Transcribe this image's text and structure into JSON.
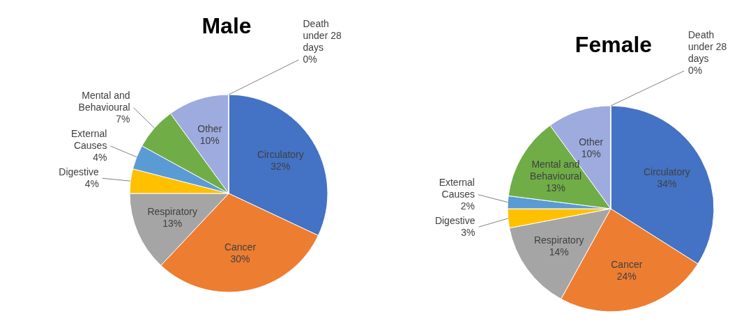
{
  "chart_data": [
    {
      "type": "pie",
      "title": "Male",
      "categories": [
        "Circulatory",
        "Cancer",
        "Respiratory",
        "Digestive",
        "External Causes",
        "Mental and Behavioural",
        "Other",
        "Death under 28 days"
      ],
      "values": [
        32,
        30,
        13,
        4,
        4,
        7,
        10,
        0
      ],
      "value_labels": [
        "32%",
        "30%",
        "13%",
        "4%",
        "4%",
        "7%",
        "10%",
        "0%"
      ],
      "colors": [
        "#4472c4",
        "#ed7d31",
        "#a5a5a5",
        "#ffc000",
        "#5b9bd5",
        "#70ad47",
        "#9dabdf",
        "#264478"
      ]
    },
    {
      "type": "pie",
      "title": "Female",
      "categories": [
        "Circulatory",
        "Cancer",
        "Respiratory",
        "Digestive",
        "External Causes",
        "Mental and Behavioural",
        "Other",
        "Death under 28 days"
      ],
      "values": [
        34,
        24,
        14,
        3,
        2,
        13,
        10,
        0
      ],
      "value_labels": [
        "34%",
        "24%",
        "14%",
        "3%",
        "2%",
        "13%",
        "10%",
        "0%"
      ],
      "colors": [
        "#4472c4",
        "#ed7d31",
        "#a5a5a5",
        "#ffc000",
        "#5b9bd5",
        "#70ad47",
        "#9dabdf",
        "#264478"
      ]
    }
  ]
}
